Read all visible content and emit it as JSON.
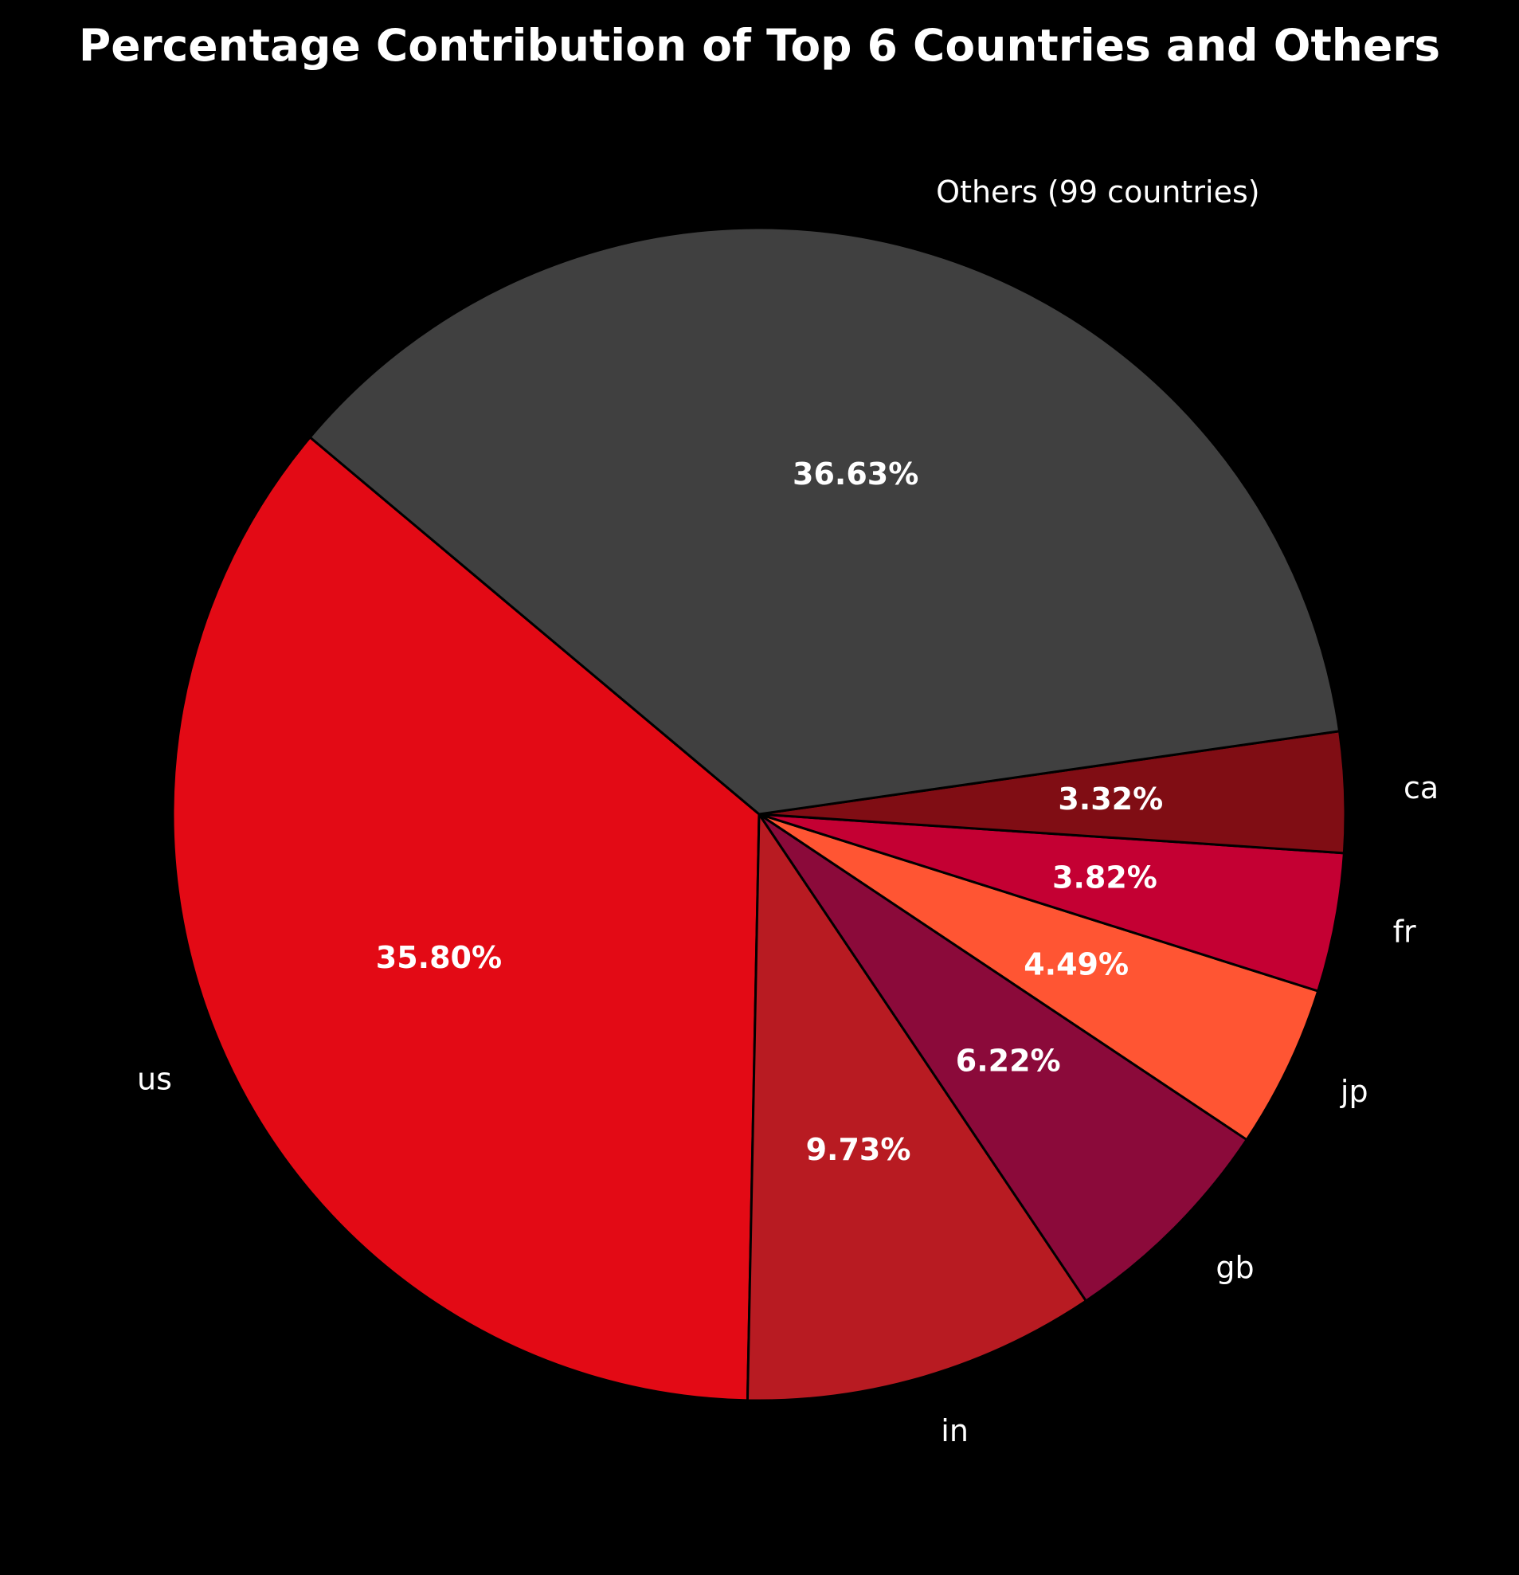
{
  "chart_data": {
    "type": "pie",
    "title": "Percentage Contribution of Top 6 Countries and Others",
    "slices": [
      {
        "label": "us",
        "value": 35.8,
        "pct_label": "35.80%",
        "color": "#e30a15"
      },
      {
        "label": "in",
        "value": 9.73,
        "pct_label": "9.73%",
        "color": "#b81b22"
      },
      {
        "label": "gb",
        "value": 6.22,
        "pct_label": "6.22%",
        "color": "#8b0a3a"
      },
      {
        "label": "jp",
        "value": 4.49,
        "pct_label": "4.49%",
        "color": "#ff5533"
      },
      {
        "label": "fr",
        "value": 3.82,
        "pct_label": "3.82%",
        "color": "#c40033"
      },
      {
        "label": "ca",
        "value": 3.32,
        "pct_label": "3.32%",
        "color": "#800d14"
      },
      {
        "label": "Others (99 countries)",
        "value": 36.63,
        "pct_label": "36.63%",
        "color": "#404040"
      }
    ],
    "background": "#000000",
    "edge_color": "#000000",
    "label_color": "#ffffff",
    "pct_label_style": "bold",
    "legend": "none"
  }
}
